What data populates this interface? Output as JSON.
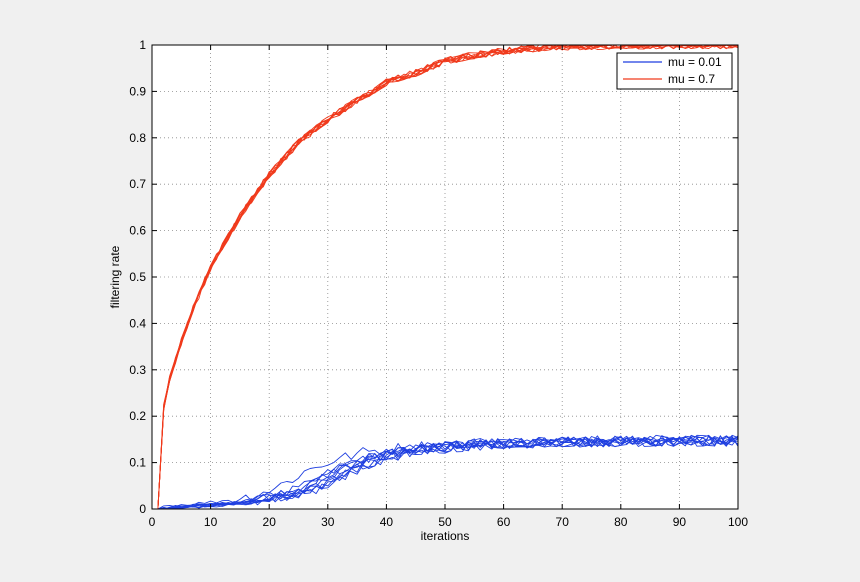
{
  "colors": {
    "background": "#f0f0f0",
    "axes_background": "#ffffff",
    "blue_series": "#1f3fe0",
    "red_series": "#f03a1c",
    "grid": "#8a8a8a",
    "axis": "#000000"
  },
  "chart_data": {
    "type": "line",
    "title": "",
    "xlabel": "iterations",
    "ylabel": "filtering rate",
    "xlim": [
      0,
      100
    ],
    "ylim": [
      0,
      1
    ],
    "x_ticks": [
      0,
      10,
      20,
      30,
      40,
      50,
      60,
      70,
      80,
      90,
      100
    ],
    "y_ticks": [
      0,
      0.1,
      0.2,
      0.3,
      0.4,
      0.5,
      0.6,
      0.7,
      0.8,
      0.9,
      1
    ],
    "x_tick_labels": [
      "0",
      "10",
      "20",
      "30",
      "40",
      "50",
      "60",
      "70",
      "80",
      "90",
      "100"
    ],
    "y_tick_labels": [
      "0",
      "0.1",
      "0.2",
      "0.3",
      "0.4",
      "0.5",
      "0.6",
      "0.7",
      "0.8",
      "0.9",
      "1"
    ],
    "grid": true,
    "grid_style": "dotted",
    "legend_position": "top-right",
    "legend": [
      {
        "label": "mu = 0.01",
        "color": "#1f3fe0"
      },
      {
        "label": "mu = 0.7",
        "color": "#f03a1c"
      }
    ],
    "series": [
      {
        "name": "mu = 0.01",
        "color": "#1f3fe0",
        "runs": 10,
        "x": [
          0,
          2,
          5,
          10,
          15,
          20,
          25,
          28,
          30,
          33,
          35,
          38,
          40,
          45,
          50,
          55,
          60,
          65,
          70,
          75,
          80,
          85,
          90,
          95,
          100
        ],
        "y": [
          0,
          0.003,
          0.006,
          0.01,
          0.016,
          0.025,
          0.045,
          0.065,
          0.08,
          0.095,
          0.105,
          0.115,
          0.122,
          0.13,
          0.136,
          0.14,
          0.142,
          0.144,
          0.145,
          0.146,
          0.146,
          0.147,
          0.147,
          0.147,
          0.147
        ],
        "run_spread_x": 4,
        "noise": 0.012
      },
      {
        "name": "mu = 0.7",
        "color": "#f03a1c",
        "runs": 10,
        "x": [
          0,
          1,
          2,
          3,
          5,
          7,
          10,
          15,
          20,
          25,
          30,
          35,
          40,
          45,
          50,
          55,
          60,
          65,
          70,
          75,
          80,
          85,
          90,
          95,
          100
        ],
        "y": [
          0,
          0.1,
          0.22,
          0.28,
          0.36,
          0.43,
          0.52,
          0.63,
          0.72,
          0.79,
          0.84,
          0.88,
          0.92,
          0.94,
          0.965,
          0.978,
          0.987,
          0.993,
          0.997,
          0.998,
          0.999,
          0.999,
          1.0,
          1.0,
          1.0
        ],
        "run_spread_x": 0,
        "noise": 0.008
      }
    ]
  }
}
